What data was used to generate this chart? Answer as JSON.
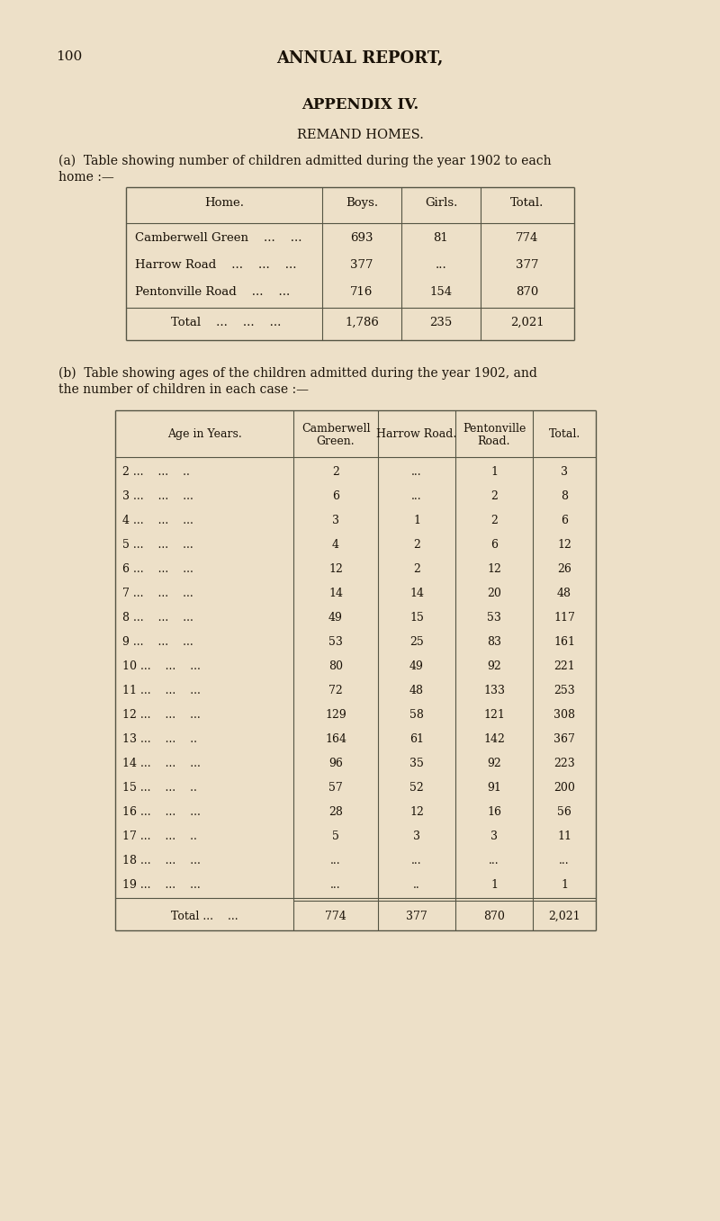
{
  "bg_color": "#ede0c8",
  "page_num": "100",
  "main_title": "ANNUAL REPORT,",
  "appendix_title": "APPENDIX IV.",
  "section_title": "REMAND HOMES.",
  "table_a_intro_line1": "(a)  Table showing number of children admitted during the year 1902 to each",
  "table_a_intro_line2": "home :—",
  "table_a_headers": [
    "Home.",
    "Boys.",
    "Girls.",
    "Total."
  ],
  "table_a_rows": [
    [
      "Camberwell Green    ...    ...",
      "693",
      "81",
      "774"
    ],
    [
      "Harrow Road    ...    ...    ...",
      "377",
      "...",
      "377"
    ],
    [
      "Pentonville Road    ...    ...",
      "716",
      "154",
      "870"
    ]
  ],
  "table_a_total": [
    "Total    ...    ...    ...",
    "1,786",
    "235",
    "2,021"
  ],
  "table_b_intro_line1": "(b)  Table showing ages of the children admitted during the year 1902, and",
  "table_b_intro_line2": "the number of children in each case :—",
  "table_b_headers_line1": [
    "Age in Years.",
    "Camberwell",
    "Harrow Road.",
    "Pentonville",
    "Total."
  ],
  "table_b_headers_line2": [
    "",
    "Green.",
    "",
    "Road.",
    ""
  ],
  "table_b_rows": [
    [
      "2 ...    ...    ..",
      "2",
      "...",
      "1",
      "3"
    ],
    [
      "3 ...    ...    ...",
      "6",
      "...",
      "2",
      "8"
    ],
    [
      "4 ...    ...    ...",
      "3",
      "1",
      "2",
      "6"
    ],
    [
      "5 ...    ...    ...",
      "4",
      "2",
      "6",
      "12"
    ],
    [
      "6 ...    ...    ...",
      "12",
      "2",
      "12",
      "26"
    ],
    [
      "7 ...    ...    ...",
      "14",
      "14",
      "20",
      "48"
    ],
    [
      "8 ...    ...    ...",
      "49",
      "15",
      "53",
      "117"
    ],
    [
      "9 ...    ...    ...",
      "53",
      "25",
      "83",
      "161"
    ],
    [
      "10 ...    ...    ...",
      "80",
      "49",
      "92",
      "221"
    ],
    [
      "11 ...    ...    ...",
      "72",
      "48",
      "133",
      "253"
    ],
    [
      "12 ...    ...    ...",
      "129",
      "58",
      "121",
      "308"
    ],
    [
      "13 ...    ...    ..",
      "164",
      "61",
      "142",
      "367"
    ],
    [
      "14 ...    ...    ...",
      "96",
      "35",
      "92",
      "223"
    ],
    [
      "15 ...    ...    ..",
      "57",
      "52",
      "91",
      "200"
    ],
    [
      "16 ...    ...    ...",
      "28",
      "12",
      "16",
      "56"
    ],
    [
      "17 ...    ...    ..",
      "5",
      "3",
      "3",
      "11"
    ],
    [
      "18 ...    ...    ...",
      "...",
      "...",
      "...",
      "..."
    ],
    [
      "19 ...    ...    ...",
      "...",
      "..",
      "1",
      "1"
    ]
  ],
  "table_b_total": [
    "Total ...    ...",
    "774",
    "377",
    "870",
    "2,021"
  ],
  "text_color": "#1a1208",
  "line_color": "#555544"
}
